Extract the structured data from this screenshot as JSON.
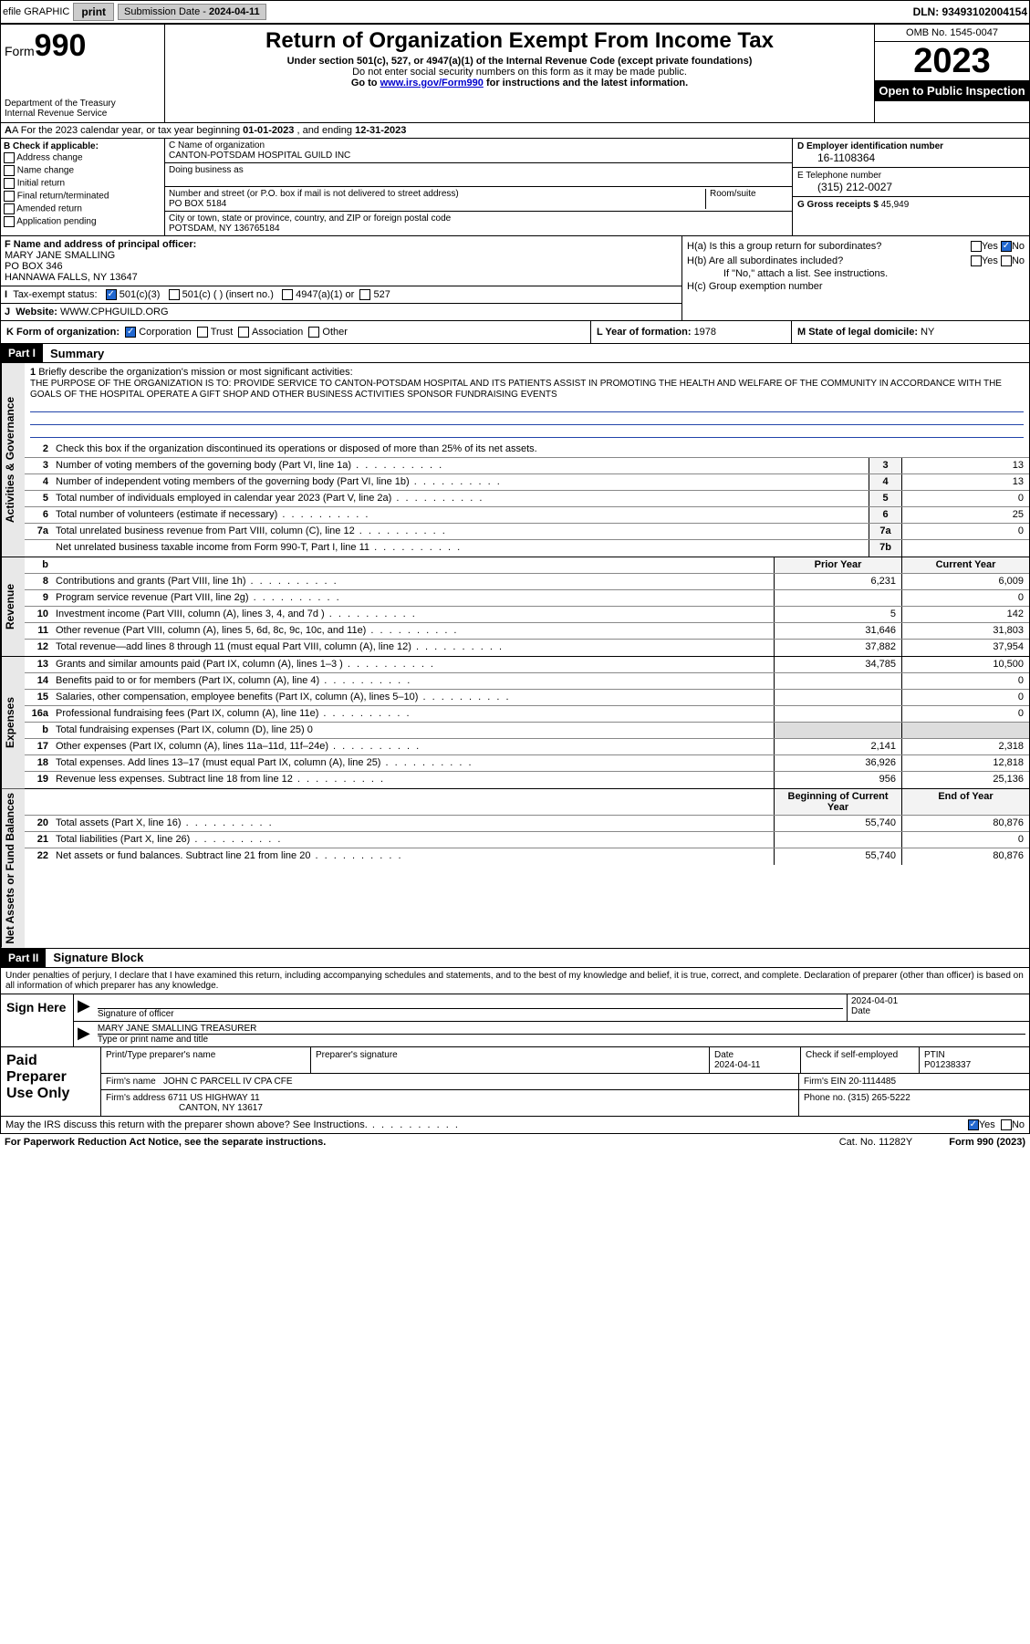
{
  "topbar": {
    "efile": "efile GRAPHIC",
    "print": "print",
    "subdate_lbl": "Submission Date - ",
    "subdate": "2024-04-11",
    "dln": "DLN: 93493102004154"
  },
  "header": {
    "form": "Form",
    "num": "990",
    "dept": "Department of the Treasury\nInternal Revenue Service",
    "title": "Return of Organization Exempt From Income Tax",
    "sub": "Under section 501(c), 527, or 4947(a)(1) of the Internal Revenue Code (except private foundations)",
    "sub2": "Do not enter social security numbers on this form as it may be made public.",
    "goto_pre": "Go to ",
    "goto_url": "www.irs.gov/Form990",
    "goto_post": " for instructions and the latest information.",
    "omb": "OMB No. 1545-0047",
    "year": "2023",
    "opi": "Open to Public Inspection"
  },
  "row_a": {
    "text_pre": "A For the 2023 calendar year, or tax year beginning ",
    "begin": "01-01-2023",
    "mid": " , and ending ",
    "end": "12-31-2023"
  },
  "col_b": {
    "lbl": "B Check if applicable:",
    "opts": [
      "Address change",
      "Name change",
      "Initial return",
      "Final return/terminated",
      "Amended return",
      "Application pending"
    ]
  },
  "col_c": {
    "name_lbl": "C Name of organization",
    "name": "CANTON-POTSDAM HOSPITAL GUILD INC",
    "dba_lbl": "Doing business as",
    "addr_lbl": "Number and street (or P.O. box if mail is not delivered to street address)",
    "room_lbl": "Room/suite",
    "addr": "PO BOX 5184",
    "city_lbl": "City or town, state or province, country, and ZIP or foreign postal code",
    "city": "POTSDAM, NY  136765184"
  },
  "col_de": {
    "d_lbl": "D Employer identification number",
    "ein": "16-1108364",
    "e_lbl": "E Telephone number",
    "phone": "(315) 212-0027",
    "g_lbl": "G Gross receipts $ ",
    "gross": "45,949"
  },
  "block_f": {
    "f_lbl": "F Name and address of principal officer:",
    "name": "MARY JANE SMALLING",
    "addr1": "PO BOX 346",
    "addr2": "HANNAWA FALLS, NY  13647",
    "i_lbl": "Tax-exempt status:",
    "i_501c3": "501(c)(3)",
    "i_501c": "501(c) (  ) (insert no.)",
    "i_4947": "4947(a)(1) or",
    "i_527": "527",
    "j_lbl": "Website: ",
    "website": "WWW.CPHGUILD.ORG"
  },
  "col_h": {
    "ha": "H(a)  Is this a group return for subordinates?",
    "hb": "H(b)  Are all subordinates included?",
    "hb_note": "If \"No,\" attach a list. See instructions.",
    "hc": "H(c)  Group exemption number ",
    "yes": "Yes",
    "no": "No"
  },
  "row_k": {
    "k_lbl": "K Form of organization:",
    "corp": "Corporation",
    "trust": "Trust",
    "assoc": "Association",
    "other": "Other",
    "l_lbl": "L Year of formation: ",
    "l_val": "1978",
    "m_lbl": "M State of legal domicile: ",
    "m_val": "NY"
  },
  "part1": {
    "hdr": "Part I",
    "title": "Summary",
    "q1": "Briefly describe the organization's mission or most significant activities:",
    "mission": "THE PURPOSE OF THE ORGANIZATION IS TO: PROVIDE SERVICE TO CANTON-POTSDAM HOSPITAL AND ITS PATIENTS ASSIST IN PROMOTING THE HEALTH AND WELFARE OF THE COMMUNITY IN ACCORDANCE WITH THE GOALS OF THE HOSPITAL OPERATE A GIFT SHOP AND OTHER BUSINESS ACTIVITIES SPONSOR FUNDRAISING EVENTS",
    "q2": "Check this box        if the organization discontinued its operations or disposed of more than 25% of its net assets.",
    "lines_gov": [
      {
        "n": "3",
        "t": "Number of voting members of the governing body (Part VI, line 1a)",
        "b": "3",
        "v": "13"
      },
      {
        "n": "4",
        "t": "Number of independent voting members of the governing body (Part VI, line 1b)",
        "b": "4",
        "v": "13"
      },
      {
        "n": "5",
        "t": "Total number of individuals employed in calendar year 2023 (Part V, line 2a)",
        "b": "5",
        "v": "0"
      },
      {
        "n": "6",
        "t": "Total number of volunteers (estimate if necessary)",
        "b": "6",
        "v": "25"
      },
      {
        "n": "7a",
        "t": "Total unrelated business revenue from Part VIII, column (C), line 12",
        "b": "7a",
        "v": "0"
      },
      {
        "n": "",
        "t": "Net unrelated business taxable income from Form 990-T, Part I, line 11",
        "b": "7b",
        "v": ""
      }
    ],
    "col_hdr_prior": "Prior Year",
    "col_hdr_curr": "Current Year",
    "lines_rev": [
      {
        "n": "8",
        "t": "Contributions and grants (Part VIII, line 1h)",
        "p": "6,231",
        "c": "6,009"
      },
      {
        "n": "9",
        "t": "Program service revenue (Part VIII, line 2g)",
        "p": "",
        "c": "0"
      },
      {
        "n": "10",
        "t": "Investment income (Part VIII, column (A), lines 3, 4, and 7d )",
        "p": "5",
        "c": "142"
      },
      {
        "n": "11",
        "t": "Other revenue (Part VIII, column (A), lines 5, 6d, 8c, 9c, 10c, and 11e)",
        "p": "31,646",
        "c": "31,803"
      },
      {
        "n": "12",
        "t": "Total revenue—add lines 8 through 11 (must equal Part VIII, column (A), line 12)",
        "p": "37,882",
        "c": "37,954"
      }
    ],
    "lines_exp": [
      {
        "n": "13",
        "t": "Grants and similar amounts paid (Part IX, column (A), lines 1–3 )",
        "p": "34,785",
        "c": "10,500"
      },
      {
        "n": "14",
        "t": "Benefits paid to or for members (Part IX, column (A), line 4)",
        "p": "",
        "c": "0"
      },
      {
        "n": "15",
        "t": "Salaries, other compensation, employee benefits (Part IX, column (A), lines 5–10)",
        "p": "",
        "c": "0"
      },
      {
        "n": "16a",
        "t": "Professional fundraising fees (Part IX, column (A), line 11e)",
        "p": "",
        "c": "0"
      },
      {
        "n": "b",
        "t": "Total fundraising expenses (Part IX, column (D), line 25) 0",
        "p": null,
        "c": null
      },
      {
        "n": "17",
        "t": "Other expenses (Part IX, column (A), lines 11a–11d, 11f–24e)",
        "p": "2,141",
        "c": "2,318"
      },
      {
        "n": "18",
        "t": "Total expenses. Add lines 13–17 (must equal Part IX, column (A), line 25)",
        "p": "36,926",
        "c": "12,818"
      },
      {
        "n": "19",
        "t": "Revenue less expenses. Subtract line 18 from line 12",
        "p": "956",
        "c": "25,136"
      }
    ],
    "col_hdr_beg": "Beginning of Current Year",
    "col_hdr_end": "End of Year",
    "lines_na": [
      {
        "n": "20",
        "t": "Total assets (Part X, line 16)",
        "p": "55,740",
        "c": "80,876"
      },
      {
        "n": "21",
        "t": "Total liabilities (Part X, line 26)",
        "p": "",
        "c": "0"
      },
      {
        "n": "22",
        "t": "Net assets or fund balances. Subtract line 21 from line 20",
        "p": "55,740",
        "c": "80,876"
      }
    ]
  },
  "part2": {
    "hdr": "Part II",
    "title": "Signature Block",
    "decl": "Under penalties of perjury, I declare that I have examined this return, including accompanying schedules and statements, and to the best of my knowledge and belief, it is true, correct, and complete. Declaration of preparer (other than officer) is based on all information of which preparer has any knowledge."
  },
  "sign": {
    "lbl": "Sign Here",
    "sig_lbl": "Signature of officer",
    "date_lbl": "Date",
    "date": "2024-04-01",
    "name": "MARY JANE SMALLING  TREASURER",
    "type_lbl": "Type or print name and title"
  },
  "prep": {
    "lbl": "Paid Preparer Use Only",
    "c1": "Print/Type preparer's name",
    "c2": "Preparer's signature",
    "c3": "Date",
    "c3v": "2024-04-11",
    "c4": "Check        if self-employed",
    "c5": "PTIN",
    "c5v": "P01238337",
    "firm_lbl": "Firm's name   ",
    "firm": "JOHN C PARCELL IV CPA CFE",
    "ein_lbl": "Firm's EIN  ",
    "ein": "20-1114485",
    "addr_lbl": "Firm's address ",
    "addr1": "6711 US HIGHWAY 11",
    "addr2": "CANTON, NY  13617",
    "ph_lbl": "Phone no. ",
    "ph": "(315) 265-5222"
  },
  "footer": {
    "q": "May the IRS discuss this return with the preparer shown above? See Instructions.",
    "yes": "Yes",
    "no": "No",
    "pra": "For Paperwork Reduction Act Notice, see the separate instructions.",
    "cat": "Cat. No. 11282Y",
    "form": "Form 990 (2023)"
  },
  "b_label": "b"
}
